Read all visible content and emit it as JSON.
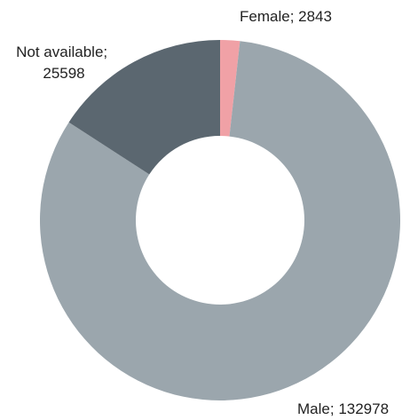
{
  "chart_data": {
    "type": "donut",
    "categories": [
      "Female",
      "Male",
      "Not available"
    ],
    "values": [
      2843,
      132978,
      25598
    ],
    "colors": [
      "#f0a1a6",
      "#9ba6ad",
      "#5b6770"
    ],
    "label_separator": "; "
  }
}
